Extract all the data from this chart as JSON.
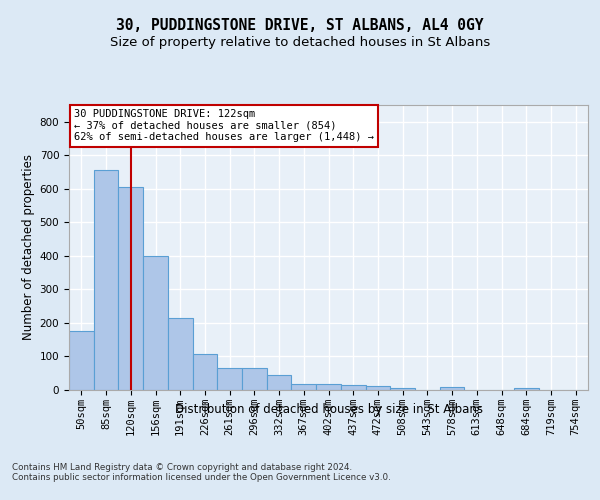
{
  "title_line1": "30, PUDDINGSTONE DRIVE, ST ALBANS, AL4 0GY",
  "title_line2": "Size of property relative to detached houses in St Albans",
  "xlabel": "Distribution of detached houses by size in St Albans",
  "ylabel": "Number of detached properties",
  "footnote": "Contains HM Land Registry data © Crown copyright and database right 2024.\nContains public sector information licensed under the Open Government Licence v3.0.",
  "bar_labels": [
    "50sqm",
    "85sqm",
    "120sqm",
    "156sqm",
    "191sqm",
    "226sqm",
    "261sqm",
    "296sqm",
    "332sqm",
    "367sqm",
    "402sqm",
    "437sqm",
    "472sqm",
    "508sqm",
    "543sqm",
    "578sqm",
    "613sqm",
    "648sqm",
    "684sqm",
    "719sqm",
    "754sqm"
  ],
  "bar_values": [
    175,
    655,
    605,
    400,
    215,
    107,
    65,
    65,
    45,
    18,
    17,
    15,
    13,
    7,
    0,
    8,
    0,
    0,
    7,
    0,
    0
  ],
  "bar_color": "#aec6e8",
  "bar_edge_color": "#5a9fd4",
  "highlight_bar_index": 2,
  "highlight_color": "#c00000",
  "annotation_box_text": "30 PUDDINGSTONE DRIVE: 122sqm\n← 37% of detached houses are smaller (854)\n62% of semi-detached houses are larger (1,448) →",
  "ylim": [
    0,
    850
  ],
  "yticks": [
    0,
    100,
    200,
    300,
    400,
    500,
    600,
    700,
    800
  ],
  "bg_color": "#dce9f5",
  "plot_bg_color": "#e8f0f8",
  "grid_color": "#ffffff",
  "title_fontsize": 10.5,
  "subtitle_fontsize": 9.5,
  "axis_label_fontsize": 8.5,
  "tick_fontsize": 7.5,
  "annotation_fontsize": 7.5
}
